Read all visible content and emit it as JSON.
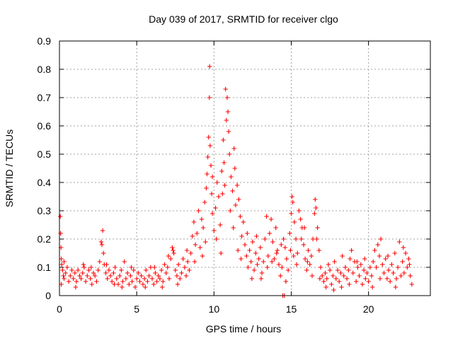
{
  "chart_data": {
    "type": "scatter",
    "title": "Day 039 of 2017, SRMTID for receiver clgo",
    "xlabel": "GPS time / hours",
    "ylabel": "SRMTID / TECUs",
    "xlim": [
      0,
      24
    ],
    "ylim": [
      0,
      0.9
    ],
    "x_ticks": [
      0,
      5,
      10,
      15,
      20
    ],
    "x_tick_labels": [
      "0",
      "5",
      "10",
      "15",
      "20"
    ],
    "y_ticks": [
      0,
      0.1,
      0.2,
      0.3,
      0.4,
      0.5,
      0.6,
      0.7,
      0.8,
      0.9
    ],
    "y_tick_labels": [
      "0",
      "0.1",
      "0.2",
      "0.3",
      "0.4",
      "0.5",
      "0.6",
      "0.7",
      "0.8",
      "0.9"
    ],
    "grid": true,
    "legend": "none",
    "marker": "+",
    "color": "#ff0000",
    "series": [
      {
        "name": "SRMTID",
        "points": [
          [
            0.05,
            0.28
          ],
          [
            0.08,
            0.22
          ],
          [
            0.1,
            0.17
          ],
          [
            0.12,
            0.13
          ],
          [
            0.15,
            0.11
          ],
          [
            0.2,
            0.09
          ],
          [
            0.25,
            0.07
          ],
          [
            0.3,
            0.06
          ],
          [
            0.4,
            0.08
          ],
          [
            0.5,
            0.1
          ],
          [
            0.6,
            0.05
          ],
          [
            0.7,
            0.07
          ],
          [
            0.8,
            0.09
          ],
          [
            0.9,
            0.06
          ],
          [
            1.0,
            0.08
          ],
          [
            1.1,
            0.05
          ],
          [
            1.2,
            0.09
          ],
          [
            1.3,
            0.07
          ],
          [
            1.4,
            0.06
          ],
          [
            1.5,
            0.08
          ],
          [
            1.6,
            0.1
          ],
          [
            1.7,
            0.05
          ],
          [
            1.8,
            0.07
          ],
          [
            1.9,
            0.09
          ],
          [
            2.0,
            0.06
          ],
          [
            2.1,
            0.04
          ],
          [
            2.2,
            0.08
          ],
          [
            2.3,
            0.07
          ],
          [
            2.4,
            0.05
          ],
          [
            2.5,
            0.09
          ],
          [
            2.6,
            0.12
          ],
          [
            2.7,
            0.19
          ],
          [
            2.75,
            0.18
          ],
          [
            2.8,
            0.23
          ],
          [
            2.85,
            0.15
          ],
          [
            2.9,
            0.11
          ],
          [
            3.0,
            0.08
          ],
          [
            3.1,
            0.06
          ],
          [
            3.2,
            0.09
          ],
          [
            3.3,
            0.07
          ],
          [
            3.4,
            0.05
          ],
          [
            3.5,
            0.08
          ],
          [
            3.6,
            0.1
          ],
          [
            3.7,
            0.06
          ],
          [
            3.8,
            0.04
          ],
          [
            3.9,
            0.07
          ],
          [
            4.0,
            0.09
          ],
          [
            4.1,
            0.05
          ],
          [
            4.2,
            0.12
          ],
          [
            4.3,
            0.06
          ],
          [
            4.4,
            0.08
          ],
          [
            4.5,
            0.04
          ],
          [
            4.6,
            0.07
          ],
          [
            4.7,
            0.05
          ],
          [
            4.8,
            0.09
          ],
          [
            4.9,
            0.03
          ],
          [
            5.0,
            0.06
          ],
          [
            5.1,
            0.08
          ],
          [
            5.2,
            0.05
          ],
          [
            5.3,
            0.07
          ],
          [
            5.4,
            0.04
          ],
          [
            5.5,
            0.06
          ],
          [
            5.6,
            0.09
          ],
          [
            5.7,
            0.05
          ],
          [
            5.8,
            0.07
          ],
          [
            5.9,
            0.1
          ],
          [
            6.0,
            0.06
          ],
          [
            6.1,
            0.04
          ],
          [
            6.2,
            0.08
          ],
          [
            6.3,
            0.05
          ],
          [
            6.4,
            0.07
          ],
          [
            6.5,
            0.06
          ],
          [
            6.6,
            0.09
          ],
          [
            6.7,
            0.05
          ],
          [
            6.8,
            0.11
          ],
          [
            6.9,
            0.08
          ],
          [
            7.0,
            0.1
          ],
          [
            7.1,
            0.06
          ],
          [
            7.2,
            0.13
          ],
          [
            7.3,
            0.17
          ],
          [
            7.35,
            0.16
          ],
          [
            7.4,
            0.15
          ],
          [
            7.5,
            0.09
          ],
          [
            7.6,
            0.07
          ],
          [
            7.7,
            0.11
          ],
          [
            7.8,
            0.06
          ],
          [
            7.9,
            0.08
          ],
          [
            8.0,
            0.13
          ],
          [
            8.1,
            0.1
          ],
          [
            8.2,
            0.07
          ],
          [
            8.3,
            0.12
          ],
          [
            8.4,
            0.09
          ],
          [
            8.5,
            0.15
          ],
          [
            8.6,
            0.21
          ],
          [
            8.7,
            0.26
          ],
          [
            8.8,
            0.18
          ],
          [
            8.9,
            0.22
          ],
          [
            9.0,
            0.3
          ],
          [
            9.1,
            0.17
          ],
          [
            9.2,
            0.27
          ],
          [
            9.3,
            0.24
          ],
          [
            9.4,
            0.33
          ],
          [
            9.5,
            0.38
          ],
          [
            9.55,
            0.43
          ],
          [
            9.6,
            0.49
          ],
          [
            9.65,
            0.56
          ],
          [
            9.7,
            0.7
          ],
          [
            9.72,
            0.81
          ],
          [
            9.75,
            0.53
          ],
          [
            9.8,
            0.46
          ],
          [
            9.85,
            0.36
          ],
          [
            9.9,
            0.29
          ],
          [
            10.0,
            0.23
          ],
          [
            10.1,
            0.31
          ],
          [
            10.2,
            0.4
          ],
          [
            10.3,
            0.35
          ],
          [
            10.4,
            0.25
          ],
          [
            10.5,
            0.44
          ],
          [
            10.6,
            0.55
          ],
          [
            10.65,
            0.47
          ],
          [
            10.7,
            0.39
          ],
          [
            10.75,
            0.73
          ],
          [
            10.8,
            0.62
          ],
          [
            10.85,
            0.7
          ],
          [
            10.9,
            0.65
          ],
          [
            10.95,
            0.58
          ],
          [
            11.0,
            0.5
          ],
          [
            11.1,
            0.42
          ],
          [
            11.2,
            0.37
          ],
          [
            11.3,
            0.52
          ],
          [
            11.35,
            0.45
          ],
          [
            11.4,
            0.32
          ],
          [
            11.5,
            0.39
          ],
          [
            11.6,
            0.34
          ],
          [
            11.7,
            0.28
          ],
          [
            11.8,
            0.21
          ],
          [
            11.9,
            0.26
          ],
          [
            12.0,
            0.18
          ],
          [
            12.1,
            0.14
          ],
          [
            12.2,
            0.1
          ],
          [
            12.3,
            0.16
          ],
          [
            12.4,
            0.12
          ],
          [
            12.5,
            0.19
          ],
          [
            12.6,
            0.09
          ],
          [
            12.7,
            0.15
          ],
          [
            12.8,
            0.11
          ],
          [
            12.9,
            0.13
          ],
          [
            13.0,
            0.17
          ],
          [
            13.1,
            0.08
          ],
          [
            13.2,
            0.12
          ],
          [
            13.3,
            0.2
          ],
          [
            13.4,
            0.28
          ],
          [
            13.5,
            0.14
          ],
          [
            13.6,
            0.22
          ],
          [
            13.7,
            0.27
          ],
          [
            13.8,
            0.19
          ],
          [
            13.9,
            0.13
          ],
          [
            14.0,
            0.24
          ],
          [
            14.1,
            0.16
          ],
          [
            14.2,
            0.11
          ],
          [
            14.3,
            0.07
          ],
          [
            14.4,
            0.1
          ],
          [
            14.5,
            0.2
          ],
          [
            14.6,
            0.17
          ],
          [
            14.7,
            0.13
          ],
          [
            14.8,
            0.09
          ],
          [
            14.9,
            0.22
          ],
          [
            15.0,
            0.29
          ],
          [
            15.05,
            0.35
          ],
          [
            15.1,
            0.33
          ],
          [
            15.2,
            0.26
          ],
          [
            15.3,
            0.2
          ],
          [
            15.4,
            0.15
          ],
          [
            15.5,
            0.3
          ],
          [
            15.6,
            0.27
          ],
          [
            15.7,
            0.24
          ],
          [
            15.8,
            0.18
          ],
          [
            15.9,
            0.13
          ],
          [
            16.0,
            0.09
          ],
          [
            16.1,
            0.16
          ],
          [
            16.2,
            0.11
          ],
          [
            16.3,
            0.14
          ],
          [
            16.4,
            0.2
          ],
          [
            16.5,
            0.29
          ],
          [
            16.55,
            0.34
          ],
          [
            16.6,
            0.31
          ],
          [
            16.7,
            0.24
          ],
          [
            16.8,
            0.16
          ],
          [
            16.9,
            0.1
          ],
          [
            17.0,
            0.07
          ],
          [
            17.1,
            0.05
          ],
          [
            17.2,
            0.08
          ],
          [
            17.3,
            0.06
          ],
          [
            17.4,
            0.11
          ],
          [
            17.5,
            0.09
          ],
          [
            17.6,
            0.04
          ],
          [
            17.7,
            0.07
          ],
          [
            17.8,
            0.12
          ],
          [
            17.9,
            0.06
          ],
          [
            18.0,
            0.09
          ],
          [
            18.1,
            0.05
          ],
          [
            18.2,
            0.08
          ],
          [
            18.3,
            0.14
          ],
          [
            18.4,
            0.07
          ],
          [
            18.5,
            0.1
          ],
          [
            18.6,
            0.06
          ],
          [
            18.7,
            0.09
          ],
          [
            18.8,
            0.13
          ],
          [
            18.9,
            0.16
          ],
          [
            19.0,
            0.08
          ],
          [
            19.1,
            0.12
          ],
          [
            19.2,
            0.05
          ],
          [
            19.3,
            0.1
          ],
          [
            19.4,
            0.07
          ],
          [
            19.5,
            0.11
          ],
          [
            19.6,
            0.04
          ],
          [
            19.7,
            0.09
          ],
          [
            19.8,
            0.06
          ],
          [
            19.9,
            0.08
          ],
          [
            20.0,
            0.05
          ],
          [
            20.1,
            0.1
          ],
          [
            20.2,
            0.07
          ],
          [
            20.3,
            0.12
          ],
          [
            20.4,
            0.16
          ],
          [
            20.5,
            0.1
          ],
          [
            20.6,
            0.18
          ],
          [
            20.7,
            0.14
          ],
          [
            20.8,
            0.2
          ],
          [
            20.9,
            0.11
          ],
          [
            21.0,
            0.08
          ],
          [
            21.1,
            0.13
          ],
          [
            21.2,
            0.06
          ],
          [
            21.3,
            0.09
          ],
          [
            21.4,
            0.05
          ],
          [
            21.5,
            0.11
          ],
          [
            21.6,
            0.08
          ],
          [
            21.7,
            0.15
          ],
          [
            21.8,
            0.06
          ],
          [
            21.9,
            0.1
          ],
          [
            22.0,
            0.19
          ],
          [
            22.1,
            0.07
          ],
          [
            22.2,
            0.12
          ],
          [
            22.3,
            0.08
          ],
          [
            22.4,
            0.15
          ],
          [
            22.5,
            0.1
          ],
          [
            22.6,
            0.13
          ],
          [
            22.7,
            0.07
          ],
          [
            22.8,
            0.04
          ],
          [
            0.12,
            0.04
          ],
          [
            0.3,
            0.12
          ],
          [
            1.05,
            0.03
          ],
          [
            1.55,
            0.11
          ],
          [
            2.05,
            0.1
          ],
          [
            3.05,
            0.11
          ],
          [
            3.55,
            0.04
          ],
          [
            4.05,
            0.03
          ],
          [
            4.65,
            0.1
          ],
          [
            5.55,
            0.03
          ],
          [
            6.15,
            0.1
          ],
          [
            6.65,
            0.03
          ],
          [
            7.05,
            0.14
          ],
          [
            7.65,
            0.04
          ],
          [
            8.25,
            0.16
          ],
          [
            8.75,
            0.12
          ],
          [
            9.25,
            0.14
          ],
          [
            9.45,
            0.19
          ],
          [
            9.9,
            0.42
          ],
          [
            10.15,
            0.2
          ],
          [
            10.45,
            0.15
          ],
          [
            10.55,
            0.36
          ],
          [
            11.05,
            0.3
          ],
          [
            11.25,
            0.24
          ],
          [
            11.55,
            0.16
          ],
          [
            11.75,
            0.13
          ],
          [
            12.15,
            0.22
          ],
          [
            12.45,
            0.06
          ],
          [
            12.75,
            0.21
          ],
          [
            13.05,
            0.06
          ],
          [
            13.45,
            0.1
          ],
          [
            13.75,
            0.12
          ],
          [
            14.05,
            0.15
          ],
          [
            14.35,
            0.18
          ],
          [
            14.65,
            0.05
          ],
          [
            14.95,
            0.16
          ],
          [
            15.15,
            0.14
          ],
          [
            15.35,
            0.11
          ],
          [
            15.65,
            0.2
          ],
          [
            15.85,
            0.24
          ],
          [
            16.05,
            0.12
          ],
          [
            16.35,
            0.07
          ],
          [
            16.65,
            0.2
          ],
          [
            16.85,
            0.06
          ],
          [
            17.25,
            0.03
          ],
          [
            17.75,
            0.02
          ],
          [
            18.25,
            0.03
          ],
          [
            18.75,
            0.04
          ],
          [
            19.25,
            0.12
          ],
          [
            19.75,
            0.13
          ],
          [
            20.25,
            0.03
          ],
          [
            20.75,
            0.06
          ],
          [
            21.25,
            0.14
          ],
          [
            21.75,
            0.03
          ],
          [
            22.25,
            0.17
          ],
          [
            22.65,
            0.11
          ],
          [
            14.45,
            0.0
          ],
          [
            14.55,
            0.0
          ]
        ]
      }
    ]
  }
}
